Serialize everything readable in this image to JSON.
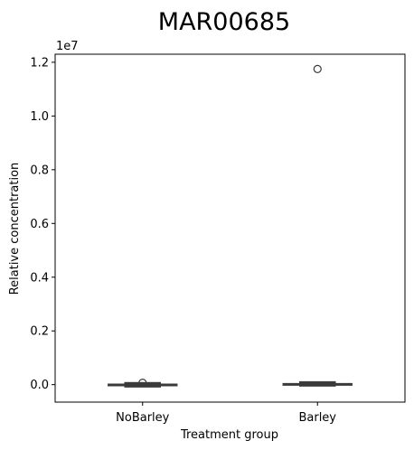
{
  "chart_data": {
    "type": "box",
    "title": "MAR00685",
    "xlabel": "Treatment group",
    "ylabel": "Relative concentration",
    "y_exponent_label": "1e7",
    "y_scale_factor": 10000000,
    "categories": [
      "NoBarley",
      "Barley"
    ],
    "ylim": [
      -650000,
      12300000
    ],
    "yticks": [
      0.0,
      0.2,
      0.4,
      0.6,
      0.8,
      1.0,
      1.2
    ],
    "ytick_labels": [
      "0.0",
      "0.2",
      "0.4",
      "0.6",
      "0.8",
      "1.0",
      "1.2"
    ],
    "grid": false,
    "legend": "none",
    "box_color": "#3a3a3a",
    "boxes": [
      {
        "category": "NoBarley",
        "whisker_low": -60000,
        "q1": -40000,
        "median": -10000,
        "q3": 30000,
        "whisker_high": 40000,
        "outliers": [
          70000
        ]
      },
      {
        "category": "Barley",
        "whisker_low": -20000,
        "q1": -5000,
        "median": 10000,
        "q3": 60000,
        "whisker_high": 80000,
        "outliers": [
          11750000
        ]
      }
    ]
  }
}
